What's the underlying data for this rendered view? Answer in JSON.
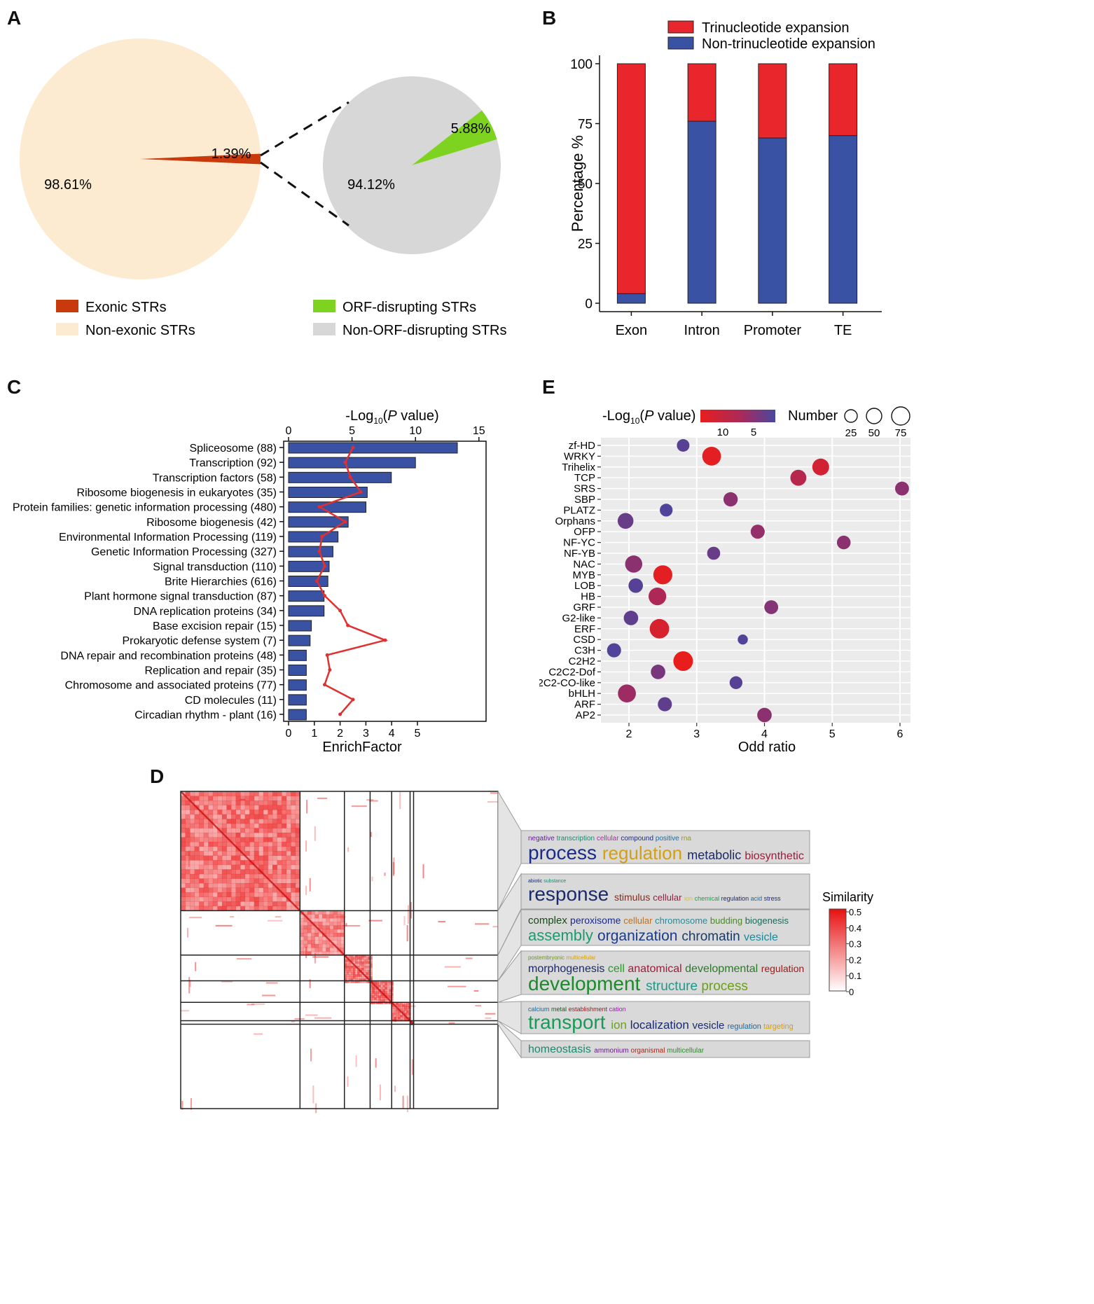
{
  "panels": {
    "a": "A",
    "b": "B",
    "c": "C",
    "d": "D",
    "e": "E"
  },
  "chart_data": [
    {
      "id": "A",
      "type": "pie",
      "pies": [
        {
          "name": "STRs",
          "slices": [
            {
              "label": "Exonic  STRs",
              "value": 1.39,
              "text": "1.39%",
              "color": "#c8390b"
            },
            {
              "label": "Non-exonic STRs",
              "value": 98.61,
              "text": "98.61%",
              "color": "#fcebd0"
            }
          ]
        },
        {
          "name": "Exonic STRs",
          "slices": [
            {
              "label": "ORF-disrupting STRs",
              "value": 5.88,
              "text": "5.88%",
              "color": "#7ed321"
            },
            {
              "label": "Non-ORF-disrupting STRs",
              "value": 94.12,
              "text": "94.12%",
              "color": "#d7d7d7"
            }
          ]
        }
      ],
      "legend": [
        {
          "label": "Exonic  STRs",
          "color": "#c8390b"
        },
        {
          "label": "Non-exonic STRs",
          "color": "#fcebd0"
        },
        {
          "label": "ORF-disrupting STRs",
          "color": "#7ed321"
        },
        {
          "label": "Non-ORF-disrupting STRs",
          "color": "#d7d7d7"
        }
      ]
    },
    {
      "id": "B",
      "type": "bar",
      "stacked": true,
      "categories": [
        "Exon",
        "Intron",
        "Promoter",
        "TE"
      ],
      "series": [
        {
          "name": "Non-trinucleotide expansion",
          "color": "#3a52a3",
          "values": [
            4,
            76,
            69,
            70
          ]
        },
        {
          "name": "Trinucleotide expansion",
          "color": "#e8262b",
          "values": [
            96,
            24,
            31,
            30
          ]
        }
      ],
      "legend": [
        "Trinucleotide expansion",
        "Non-trinucleotide expansion"
      ],
      "ylabel": "Percentage %",
      "ylim": [
        0,
        100
      ],
      "yticks": [
        "0",
        "25",
        "50",
        "75",
        "100"
      ]
    },
    {
      "id": "C",
      "type": "bar",
      "orientation": "horizontal",
      "categories": [
        "Spliceosome (88)",
        "Transcription (92)",
        "Transcription factors (58)",
        "Ribosome biogenesis in eukaryotes (35)",
        "Protein families: genetic information processing (480)",
        "Ribosome biogenesis (42)",
        "Environmental Information Processing (119)",
        "Genetic Information Processing (327)",
        "Signal transduction (110)",
        "Brite Hierarchies (616)",
        "Plant hormone signal transduction (87)",
        "DNA replication proteins (34)",
        "Base excision repair (15)",
        "Prokaryotic defense system (7)",
        "DNA repair and recombination proteins (48)",
        "Replication and repair (35)",
        "Chromosome and associated proteins (77)",
        "CD molecules (11)",
        "Circadian rhythm - plant (16)"
      ],
      "series": [
        {
          "name": "-Log10(P value)",
          "color": "#3a52a3",
          "values": [
            13.3,
            10.0,
            8.1,
            6.2,
            6.1,
            4.7,
            3.9,
            3.5,
            3.2,
            3.1,
            2.8,
            2.8,
            1.8,
            1.7,
            1.4,
            1.4,
            1.4,
            1.4,
            1.4
          ]
        },
        {
          "name": "EnrichFactor",
          "color": "#e03030",
          "values": [
            2.5,
            2.2,
            2.4,
            2.8,
            1.2,
            2.2,
            1.3,
            1.2,
            1.4,
            1.1,
            1.4,
            2.0,
            2.3,
            3.75,
            1.5,
            1.6,
            1.4,
            2.5,
            2.0
          ]
        }
      ],
      "top_axis": {
        "label_pre": "-Log",
        "label_sub": "10",
        "label_post": "(",
        "label_italic": "P",
        "label_end": " value)",
        "range": [
          0,
          15.5
        ],
        "ticks": [
          "0",
          "5",
          "10",
          "15"
        ]
      },
      "bottom_axis": {
        "label": "EnrichFactor",
        "range": [
          0,
          7.7
        ],
        "ticks": [
          "0",
          "1",
          "2",
          "3",
          "4",
          "5"
        ]
      }
    },
    {
      "id": "E",
      "type": "scatter",
      "categories": [
        "zf-HD",
        "WRKY",
        "Trihelix",
        "TCP",
        "SRS",
        "SBP",
        "PLATZ",
        "Orphans",
        "OFP",
        "NF-YC",
        "NF-YB",
        "NAC",
        "MYB",
        "LOB",
        "HB",
        "GRF",
        "G2-like",
        "ERF",
        "CSD",
        "C3H",
        "C2H2",
        "C2C2-Dof",
        "C2C2-CO-like",
        "bHLH",
        "ARF",
        "AP2"
      ],
      "points": [
        {
          "y": "zf-HD",
          "x": 2.8,
          "number": 28,
          "logp": 4.0
        },
        {
          "y": "WRKY",
          "x": 3.22,
          "number": 62,
          "logp": 14.0
        },
        {
          "y": "Trihelix",
          "x": 4.83,
          "number": 50,
          "logp": 12.5
        },
        {
          "y": "TCP",
          "x": 4.5,
          "number": 45,
          "logp": 10.0
        },
        {
          "y": "SRS",
          "x": 6.03,
          "number": 34,
          "logp": 7.0
        },
        {
          "y": "SBP",
          "x": 3.5,
          "number": 36,
          "logp": 7.0
        },
        {
          "y": "PLATZ",
          "x": 2.55,
          "number": 29,
          "logp": 3.5
        },
        {
          "y": "Orphans",
          "x": 1.95,
          "number": 44,
          "logp": 5.0
        },
        {
          "y": "OFP",
          "x": 3.9,
          "number": 35,
          "logp": 7.5
        },
        {
          "y": "NF-YC",
          "x": 5.17,
          "number": 33,
          "logp": 7.0
        },
        {
          "y": "NF-YB",
          "x": 3.25,
          "number": 30,
          "logp": 5.0
        },
        {
          "y": "NAC",
          "x": 2.07,
          "number": 52,
          "logp": 7.0
        },
        {
          "y": "MYB",
          "x": 2.5,
          "number": 64,
          "logp": 14.0
        },
        {
          "y": "LOB",
          "x": 2.1,
          "number": 37,
          "logp": 4.0
        },
        {
          "y": "HB",
          "x": 2.42,
          "number": 55,
          "logp": 9.0
        },
        {
          "y": "GRF",
          "x": 4.1,
          "number": 34,
          "logp": 6.5
        },
        {
          "y": "G2-like",
          "x": 2.03,
          "number": 37,
          "logp": 4.5
        },
        {
          "y": "ERF",
          "x": 2.45,
          "number": 67,
          "logp": 13.0
        },
        {
          "y": "CSD",
          "x": 3.68,
          "number": 18,
          "logp": 3.5
        },
        {
          "y": "C3H",
          "x": 1.78,
          "number": 35,
          "logp": 3.5
        },
        {
          "y": "C2H2",
          "x": 2.8,
          "number": 68,
          "logp": 14.5
        },
        {
          "y": "C2C2-Dof",
          "x": 2.43,
          "number": 37,
          "logp": 6.0
        },
        {
          "y": "C2C2-CO-like",
          "x": 3.58,
          "number": 29,
          "logp": 4.0
        },
        {
          "y": "bHLH",
          "x": 1.97,
          "number": 57,
          "logp": 8.0
        },
        {
          "y": "ARF",
          "x": 2.53,
          "number": 35,
          "logp": 4.5
        },
        {
          "y": "AP2",
          "x": 4.0,
          "number": 37,
          "logp": 7.0
        }
      ],
      "xlabel": "Odd ratio",
      "xlim": [
        1.6,
        6.15
      ],
      "xticks": [
        "2",
        "3",
        "4",
        "5",
        "6"
      ],
      "color_legend": {
        "title_pre": "-Log",
        "title_sub": "10",
        "title_italic": "P",
        "title_end": " value)",
        "ticks": [
          "10",
          "5"
        ]
      },
      "size_legend": {
        "title": "Number",
        "ticks": [
          "25",
          "50",
          "75"
        ]
      }
    },
    {
      "id": "D",
      "type": "heatmap",
      "cluster_bounds": [
        0,
        0.376,
        0.516,
        0.597,
        0.665,
        0.723,
        0.734,
        1.0
      ],
      "cluster_strength": [
        0.42,
        0.36,
        0.4,
        0.42,
        0.42,
        0.45,
        0.0
      ],
      "legend": {
        "title": "Similarity",
        "ticks": [
          "0.5",
          "0.4",
          "0.3",
          "0.2",
          "0.1",
          "0"
        ]
      },
      "wordclouds": [
        {
          "top": [
            {
              "w": "negative",
              "c": "#6a1aa6"
            },
            {
              "w": "transcription",
              "c": "#1a8a6e"
            },
            {
              "w": "cellular",
              "c": "#c020c0"
            },
            {
              "w": "compound",
              "c": "#1a2a8a"
            },
            {
              "w": "positive",
              "c": "#1a6aa0"
            },
            {
              "w": "rna",
              "c": "#9a9a1a"
            }
          ],
          "main": [
            {
              "w": "process",
              "c": "#1a2a8a",
              "s": 28
            },
            {
              "w": "regulation",
              "c": "#d4a010",
              "s": 26
            },
            {
              "w": "metabolic",
              "c": "#1a2a6a",
              "s": 18
            },
            {
              "w": "biosynthetic",
              "c": "#a01a3a",
              "s": 16
            }
          ]
        },
        {
          "top": [
            {
              "w": "abiotic",
              "c": "#1a2a6a"
            },
            {
              "w": "substance",
              "c": "#1a8a6e"
            }
          ],
          "main": [
            {
              "w": "response",
              "c": "#1a2a6a",
              "s": 28
            },
            {
              "w": "stimulus",
              "c": "#8a2a1a",
              "s": 14
            },
            {
              "w": "cellular",
              "c": "#a01a3a",
              "s": 13
            },
            {
              "w": "ion",
              "c": "#e0c020",
              "s": 9
            },
            {
              "w": "chemical",
              "c": "#2a9a4a",
              "s": 9
            },
            {
              "w": "regulation",
              "c": "#1a2a6a",
              "s": 9
            },
            {
              "w": "acid",
              "c": "#1a6aa0",
              "s": 9
            },
            {
              "w": "stress",
              "c": "#1a2a8a",
              "s": 9
            }
          ]
        },
        {
          "top": [
            {
              "w": "complex",
              "c": "#1a4a1a",
              "s": 15
            },
            {
              "w": "peroxisome",
              "c": "#1a2a8a",
              "s": 14
            },
            {
              "w": "cellular",
              "c": "#c07020",
              "s": 13
            },
            {
              "w": "chromosome",
              "c": "#2a8a9a",
              "s": 13
            },
            {
              "w": "budding",
              "c": "#4a8a2a",
              "s": 13
            },
            {
              "w": "biogenesis",
              "c": "#1a6a5a",
              "s": 13
            }
          ],
          "main": [
            {
              "w": "assembly",
              "c": "#1a9a6e",
              "s": 22
            },
            {
              "w": "organization",
              "c": "#1a3a8a",
              "s": 21
            },
            {
              "w": "chromatin",
              "c": "#1a3a6a",
              "s": 19
            },
            {
              "w": "vesicle",
              "c": "#1a8a9a",
              "s": 16
            }
          ]
        },
        {
          "top": [
            {
              "w": "postembryonic",
              "c": "#6a9a1a"
            },
            {
              "w": "multicellular",
              "c": "#d4a010"
            }
          ],
          "mid": [
            {
              "w": "morphogenesis",
              "c": "#1a2a6a",
              "s": 16
            },
            {
              "w": "cell",
              "c": "#2a9a2a",
              "s": 16
            },
            {
              "w": "anatomical",
              "c": "#a01a3a",
              "s": 16
            },
            {
              "w": "developmental",
              "c": "#2a7a2a",
              "s": 16
            },
            {
              "w": "regulation",
              "c": "#a01a1a",
              "s": 14
            }
          ],
          "main": [
            {
              "w": "development",
              "c": "#1a8a2a",
              "s": 28
            },
            {
              "w": "structure",
              "c": "#1a9a8a",
              "s": 19
            },
            {
              "w": "process",
              "c": "#6aa01a",
              "s": 19
            }
          ]
        },
        {
          "top": [
            {
              "w": "calcium",
              "c": "#1a6aa0"
            },
            {
              "w": "metal",
              "c": "#1a5a1a"
            },
            {
              "w": "establishment",
              "c": "#a01a1a"
            },
            {
              "w": "cation",
              "c": "#a01ac0"
            }
          ],
          "main": [
            {
              "w": "transport",
              "c": "#1a9a5a",
              "s": 28
            },
            {
              "w": "ion",
              "c": "#6aa01a",
              "s": 17
            },
            {
              "w": "localization",
              "c": "#1a2a6a",
              "s": 17
            },
            {
              "w": "vesicle",
              "c": "#1a2a6a",
              "s": 15
            },
            {
              "w": "regulation",
              "c": "#1a6aa0",
              "s": 11
            },
            {
              "w": "targeting",
              "c": "#d4a010",
              "s": 11
            }
          ]
        },
        {
          "main": [
            {
              "w": "homeostasis",
              "c": "#1a8a6e",
              "s": 16
            },
            {
              "w": "ammonium",
              "c": "#6a1a8a",
              "s": 10
            },
            {
              "w": "organismal",
              "c": "#a02a1a",
              "s": 10
            },
            {
              "w": "multicellular",
              "c": "#2a8a2a",
              "s": 10
            }
          ]
        }
      ]
    }
  ]
}
